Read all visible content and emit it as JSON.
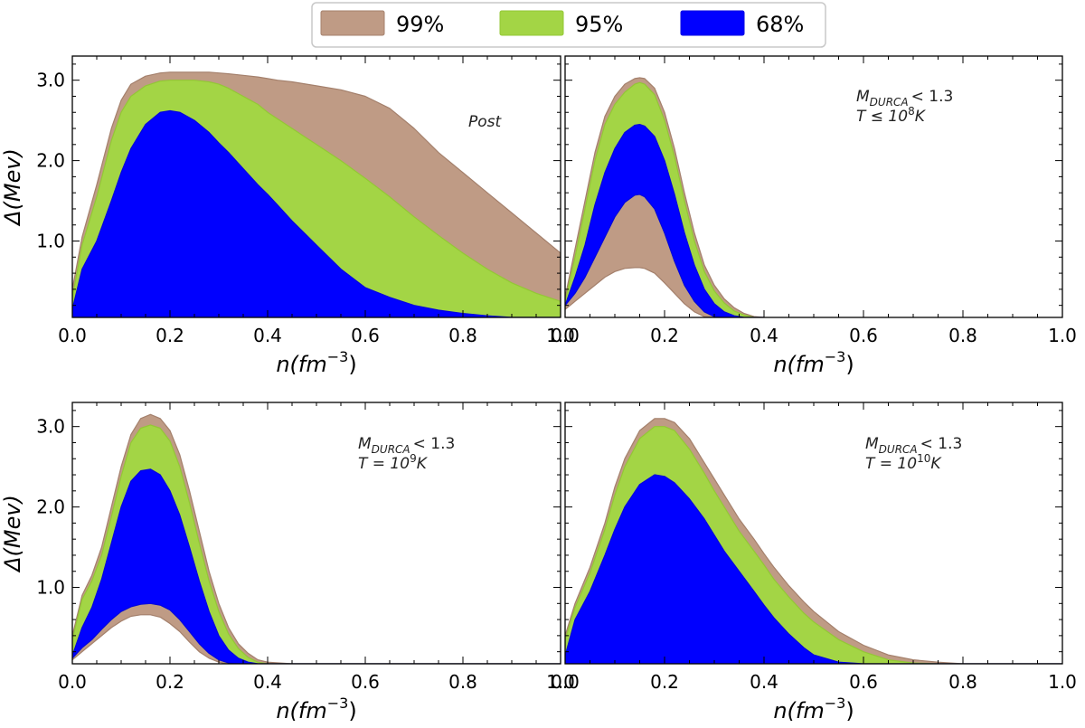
{
  "legend": {
    "placement": "top-center",
    "entries": [
      {
        "label": "99%",
        "color": "#bf9b85",
        "edge": "#a4806c"
      },
      {
        "label": "95%",
        "color": "#a3d545",
        "edge": "#93c735"
      },
      {
        "label": "68%",
        "color": "#0000ff",
        "edge": "#0000e0"
      }
    ]
  },
  "chart_data": [
    {
      "type": "area",
      "panel": "top-left",
      "xlabel_parts": [
        "n(fm",
        "−3",
        ")"
      ],
      "ylabel": "Δ(Mev)",
      "xlim": [
        0.0,
        1.0
      ],
      "ylim": [
        0.05,
        3.3
      ],
      "xticks": [
        "0.0",
        "0.2",
        "0.4",
        "0.6",
        "0.8",
        "1.0"
      ],
      "yticks": [
        "1.0",
        "2.0",
        "3.0"
      ],
      "annotation": {
        "kind": "plain",
        "text": "Post"
      },
      "x": [
        0.0,
        0.02,
        0.05,
        0.08,
        0.1,
        0.12,
        0.15,
        0.18,
        0.2,
        0.22,
        0.25,
        0.28,
        0.3,
        0.32,
        0.35,
        0.38,
        0.4,
        0.42,
        0.45,
        0.48,
        0.5,
        0.55,
        0.6,
        0.65,
        0.7,
        0.75,
        0.8,
        0.85,
        0.9,
        0.95,
        1.0
      ],
      "bands": [
        {
          "name": "99%",
          "upper": [
            0.4,
            1.05,
            1.7,
            2.4,
            2.75,
            2.95,
            3.05,
            3.09,
            3.1,
            3.1,
            3.1,
            3.1,
            3.09,
            3.08,
            3.06,
            3.04,
            3.02,
            3.0,
            2.98,
            2.95,
            2.93,
            2.88,
            2.8,
            2.65,
            2.4,
            2.1,
            1.85,
            1.6,
            1.35,
            1.1,
            0.85
          ],
          "lower": [
            0.05,
            0.18,
            0.3,
            0.38,
            0.45,
            0.52,
            0.58,
            0.62,
            0.62,
            0.6,
            0.45,
            0.25,
            0.1,
            0.05,
            0.05,
            0.05,
            0.05,
            0.05,
            0.05,
            0.05,
            0.05,
            0.05,
            0.05,
            0.05,
            0.05,
            0.05,
            0.05,
            0.05,
            0.05,
            0.05,
            0.05
          ]
        },
        {
          "name": "95%",
          "upper": [
            0.3,
            0.95,
            1.55,
            2.25,
            2.6,
            2.8,
            2.93,
            2.99,
            3.0,
            3.0,
            3.0,
            2.98,
            2.95,
            2.9,
            2.8,
            2.7,
            2.6,
            2.52,
            2.4,
            2.28,
            2.2,
            2.0,
            1.78,
            1.55,
            1.3,
            1.07,
            0.85,
            0.65,
            0.48,
            0.35,
            0.25
          ],
          "lower": [
            0.05,
            0.22,
            0.37,
            0.5,
            0.6,
            0.7,
            0.82,
            0.92,
            0.97,
            0.98,
            0.95,
            0.8,
            0.65,
            0.5,
            0.3,
            0.15,
            0.08,
            0.05,
            0.05,
            0.05,
            0.05,
            0.05,
            0.05,
            0.05,
            0.05,
            0.05,
            0.05,
            0.05,
            0.05,
            0.05,
            0.05
          ]
        },
        {
          "name": "68%",
          "upper": [
            0.15,
            0.65,
            1.0,
            1.5,
            1.85,
            2.15,
            2.45,
            2.6,
            2.62,
            2.6,
            2.5,
            2.35,
            2.22,
            2.1,
            1.9,
            1.7,
            1.58,
            1.45,
            1.25,
            1.07,
            0.95,
            0.65,
            0.42,
            0.3,
            0.2,
            0.14,
            0.1,
            0.07,
            0.05,
            0.05,
            0.05
          ],
          "lower": [
            0.05,
            0.05,
            0.05,
            0.05,
            0.05,
            0.05,
            0.05,
            0.05,
            0.05,
            0.05,
            0.05,
            0.05,
            0.05,
            0.05,
            0.05,
            0.05,
            0.05,
            0.05,
            0.05,
            0.05,
            0.05,
            0.05,
            0.05,
            0.05,
            0.05,
            0.05,
            0.05,
            0.05,
            0.05,
            0.05,
            0.05
          ]
        }
      ]
    },
    {
      "type": "area",
      "panel": "top-right",
      "xlabel_parts": [
        "n(fm",
        "−3",
        ")"
      ],
      "ylabel": "",
      "xlim": [
        0.0,
        1.0
      ],
      "ylim": [
        0.05,
        3.3
      ],
      "xticks": [
        "0.0",
        "0.2",
        "0.4",
        "0.6",
        "0.8",
        "1.0"
      ],
      "yticks": [],
      "annotation": {
        "kind": "mdurca",
        "m_label": "M",
        "m_sub": "DURCA",
        "m_value": "< 1.3",
        "t_prefix": "T ≤ 10",
        "t_exp": "8",
        "t_suffix": "K"
      },
      "x": [
        0.0,
        0.02,
        0.04,
        0.06,
        0.08,
        0.1,
        0.12,
        0.14,
        0.15,
        0.16,
        0.18,
        0.2,
        0.22,
        0.24,
        0.26,
        0.28,
        0.3,
        0.32,
        0.34,
        0.36,
        0.38,
        0.4
      ],
      "bands": [
        {
          "name": "99%",
          "upper": [
            0.3,
            0.9,
            1.5,
            2.1,
            2.55,
            2.8,
            2.95,
            3.02,
            3.03,
            3.02,
            2.9,
            2.6,
            2.15,
            1.6,
            1.1,
            0.7,
            0.45,
            0.28,
            0.17,
            0.1,
            0.06,
            0.05
          ],
          "lower": [
            0.15,
            0.25,
            0.35,
            0.45,
            0.55,
            0.62,
            0.66,
            0.67,
            0.67,
            0.66,
            0.6,
            0.48,
            0.35,
            0.22,
            0.12,
            0.06,
            0.05,
            0.05,
            0.05,
            0.05,
            0.05,
            0.05
          ]
        },
        {
          "name": "95%",
          "upper": [
            0.25,
            0.8,
            1.4,
            2.0,
            2.45,
            2.7,
            2.85,
            2.95,
            2.97,
            2.95,
            2.82,
            2.5,
            2.05,
            1.5,
            1.0,
            0.62,
            0.38,
            0.23,
            0.13,
            0.08,
            0.05,
            0.05
          ],
          "lower": [
            0.2,
            0.35,
            0.55,
            0.8,
            1.05,
            1.3,
            1.48,
            1.57,
            1.58,
            1.55,
            1.4,
            1.1,
            0.75,
            0.45,
            0.25,
            0.12,
            0.06,
            0.05,
            0.05,
            0.05,
            0.05,
            0.05
          ]
        },
        {
          "name": "68%",
          "upper": [
            0.2,
            0.55,
            0.95,
            1.45,
            1.85,
            2.15,
            2.35,
            2.44,
            2.45,
            2.43,
            2.3,
            2.0,
            1.58,
            1.1,
            0.7,
            0.4,
            0.22,
            0.12,
            0.07,
            0.05,
            0.05,
            0.05
          ],
          "lower": [
            0.2,
            0.35,
            0.55,
            0.8,
            1.05,
            1.3,
            1.48,
            1.57,
            1.58,
            1.55,
            1.4,
            1.1,
            0.75,
            0.45,
            0.25,
            0.12,
            0.06,
            0.05,
            0.05,
            0.05,
            0.05,
            0.05
          ]
        }
      ]
    },
    {
      "type": "area",
      "panel": "bottom-left",
      "xlabel_parts": [
        "n(fm",
        "−3",
        ")"
      ],
      "ylabel": "Δ(Mev)",
      "xlim": [
        0.0,
        1.0
      ],
      "ylim": [
        0.05,
        3.3
      ],
      "xticks": [
        "0.0",
        "0.2",
        "0.4",
        "0.6",
        "0.8",
        "1.0"
      ],
      "yticks": [
        "1.0",
        "2.0",
        "3.0"
      ],
      "annotation": {
        "kind": "mdurca",
        "m_label": "M",
        "m_sub": "DURCA",
        "m_value": "< 1.3",
        "t_prefix": "T = 10",
        "t_exp": "9",
        "t_suffix": "K"
      },
      "x": [
        0.0,
        0.02,
        0.04,
        0.06,
        0.08,
        0.1,
        0.12,
        0.14,
        0.16,
        0.18,
        0.2,
        0.22,
        0.24,
        0.26,
        0.28,
        0.3,
        0.32,
        0.34,
        0.36,
        0.38,
        0.4,
        0.45,
        0.5,
        0.6,
        0.8,
        1.0
      ],
      "bands": [
        {
          "name": "99%",
          "upper": [
            0.4,
            0.9,
            1.15,
            1.5,
            2.0,
            2.5,
            2.9,
            3.1,
            3.15,
            3.1,
            2.95,
            2.65,
            2.2,
            1.7,
            1.2,
            0.8,
            0.5,
            0.3,
            0.18,
            0.1,
            0.07,
            0.05,
            0.05,
            0.05,
            0.05,
            0.05
          ],
          "lower": [
            0.1,
            0.2,
            0.3,
            0.4,
            0.5,
            0.58,
            0.64,
            0.66,
            0.66,
            0.63,
            0.55,
            0.45,
            0.32,
            0.2,
            0.12,
            0.07,
            0.05,
            0.05,
            0.05,
            0.05,
            0.05,
            0.05,
            0.05,
            0.05,
            0.05,
            0.05
          ]
        },
        {
          "name": "95%",
          "upper": [
            0.35,
            0.85,
            1.08,
            1.4,
            1.88,
            2.38,
            2.8,
            2.98,
            3.02,
            2.98,
            2.82,
            2.5,
            2.05,
            1.55,
            1.08,
            0.7,
            0.42,
            0.24,
            0.13,
            0.07,
            0.05,
            0.05,
            0.05,
            0.05,
            0.05,
            0.05
          ],
          "lower": [
            0.12,
            0.25,
            0.35,
            0.48,
            0.6,
            0.7,
            0.76,
            0.79,
            0.8,
            0.78,
            0.72,
            0.6,
            0.45,
            0.3,
            0.18,
            0.1,
            0.06,
            0.05,
            0.05,
            0.05,
            0.05,
            0.05,
            0.05,
            0.05,
            0.05,
            0.05
          ]
        },
        {
          "name": "68%",
          "upper": [
            0.15,
            0.5,
            0.75,
            1.1,
            1.55,
            2.0,
            2.32,
            2.45,
            2.47,
            2.4,
            2.2,
            1.9,
            1.5,
            1.08,
            0.7,
            0.4,
            0.22,
            0.12,
            0.07,
            0.05,
            0.05,
            0.05,
            0.05,
            0.05,
            0.05,
            0.05
          ],
          "lower": [
            0.12,
            0.25,
            0.35,
            0.48,
            0.6,
            0.7,
            0.76,
            0.79,
            0.8,
            0.78,
            0.72,
            0.6,
            0.45,
            0.3,
            0.18,
            0.1,
            0.06,
            0.05,
            0.05,
            0.05,
            0.05,
            0.05,
            0.05,
            0.05,
            0.05,
            0.05
          ]
        }
      ]
    },
    {
      "type": "area",
      "panel": "bottom-right",
      "xlabel_parts": [
        "n(fm",
        "−3",
        ")"
      ],
      "ylabel": "",
      "xlim": [
        0.0,
        1.0
      ],
      "ylim": [
        0.05,
        3.3
      ],
      "xticks": [
        "0.0",
        "0.2",
        "0.4",
        "0.6",
        "0.8",
        "1.0"
      ],
      "yticks": [],
      "annotation": {
        "kind": "mdurca",
        "m_label": "M",
        "m_sub": "DURCA",
        "m_value": "< 1.3",
        "t_prefix": "T = 10",
        "t_exp": "10",
        "t_suffix": "K"
      },
      "x": [
        0.0,
        0.02,
        0.05,
        0.08,
        0.1,
        0.12,
        0.15,
        0.18,
        0.2,
        0.22,
        0.25,
        0.28,
        0.3,
        0.32,
        0.35,
        0.38,
        0.4,
        0.42,
        0.45,
        0.48,
        0.5,
        0.55,
        0.6,
        0.65,
        0.7,
        0.75,
        0.8,
        0.9,
        1.0
      ],
      "bands": [
        {
          "name": "99%",
          "upper": [
            0.4,
            0.8,
            1.25,
            1.8,
            2.25,
            2.6,
            2.95,
            3.1,
            3.1,
            3.05,
            2.85,
            2.55,
            2.35,
            2.15,
            1.85,
            1.6,
            1.42,
            1.25,
            1.02,
            0.82,
            0.7,
            0.45,
            0.28,
            0.16,
            0.1,
            0.07,
            0.05,
            0.05,
            0.05
          ],
          "lower": [
            0.1,
            0.2,
            0.3,
            0.42,
            0.5,
            0.56,
            0.62,
            0.64,
            0.62,
            0.55,
            0.4,
            0.22,
            0.12,
            0.06,
            0.05,
            0.05,
            0.05,
            0.05,
            0.05,
            0.05,
            0.05,
            0.05,
            0.05,
            0.05,
            0.05,
            0.05,
            0.05,
            0.05,
            0.05
          ]
        },
        {
          "name": "95%",
          "upper": [
            0.35,
            0.75,
            1.18,
            1.72,
            2.15,
            2.5,
            2.85,
            3.0,
            3.0,
            2.95,
            2.72,
            2.42,
            2.2,
            2.0,
            1.7,
            1.45,
            1.28,
            1.1,
            0.88,
            0.68,
            0.57,
            0.35,
            0.2,
            0.1,
            0.06,
            0.05,
            0.05,
            0.05,
            0.05
          ],
          "lower": [
            0.12,
            0.25,
            0.37,
            0.52,
            0.62,
            0.72,
            0.82,
            0.87,
            0.88,
            0.85,
            0.75,
            0.58,
            0.45,
            0.32,
            0.18,
            0.09,
            0.06,
            0.05,
            0.05,
            0.05,
            0.05,
            0.05,
            0.05,
            0.05,
            0.05,
            0.05,
            0.05,
            0.05,
            0.05
          ]
        },
        {
          "name": "68%",
          "upper": [
            0.15,
            0.6,
            0.95,
            1.4,
            1.72,
            2.0,
            2.28,
            2.4,
            2.38,
            2.3,
            2.1,
            1.85,
            1.65,
            1.45,
            1.2,
            0.95,
            0.78,
            0.62,
            0.42,
            0.25,
            0.16,
            0.07,
            0.05,
            0.05,
            0.05,
            0.05,
            0.05,
            0.05,
            0.05
          ],
          "lower": [
            0.05,
            0.05,
            0.05,
            0.05,
            0.05,
            0.05,
            0.05,
            0.05,
            0.05,
            0.05,
            0.05,
            0.05,
            0.05,
            0.05,
            0.05,
            0.05,
            0.05,
            0.05,
            0.05,
            0.05,
            0.05,
            0.05,
            0.05,
            0.05,
            0.05,
            0.05,
            0.05,
            0.05,
            0.05
          ]
        }
      ]
    }
  ]
}
